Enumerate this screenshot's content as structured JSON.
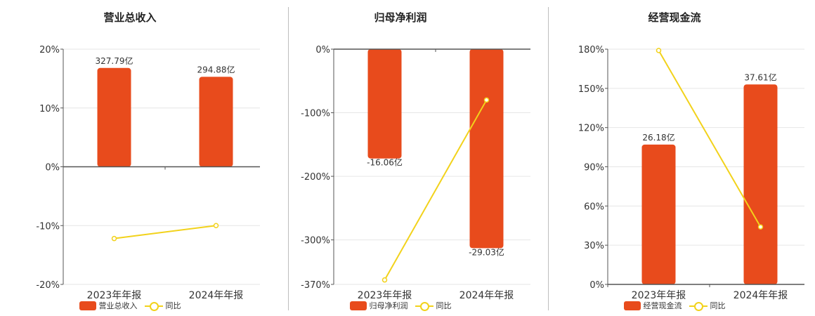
{
  "colors": {
    "bar": "#E84B1C",
    "line": "#F2D21B",
    "grid": "#e6e6e6",
    "axis": "#555555"
  },
  "legend": {
    "yoy": "同比"
  },
  "chart_data": [
    {
      "type": "bar",
      "title": "营业总收入",
      "categories": [
        "2023年年报",
        "2024年年报"
      ],
      "series": [
        {
          "name": "营业总收入",
          "type": "bar",
          "values": [
            16.8,
            15.3
          ],
          "labels": [
            "327.79亿",
            "294.88亿"
          ]
        },
        {
          "name": "同比",
          "type": "line",
          "values": [
            -12.2,
            -10.0
          ]
        }
      ],
      "ylim": [
        -20,
        20
      ],
      "yticks": [
        "20%",
        "10%",
        "0%",
        "-10%",
        "-20%"
      ],
      "ytick_values": [
        20,
        10,
        0,
        -10,
        -20
      ],
      "grid": true,
      "legend": "bottom"
    },
    {
      "type": "bar",
      "title": "归母净利润",
      "categories": [
        "2023年年报",
        "2024年年报"
      ],
      "series": [
        {
          "name": "归母净利润",
          "type": "bar",
          "values": [
            -172,
            -313
          ],
          "labels": [
            "-16.06亿",
            "-29.03亿"
          ]
        },
        {
          "name": "同比",
          "type": "line",
          "values": [
            -363,
            -80
          ]
        }
      ],
      "ylim": [
        -370,
        0
      ],
      "yticks": [
        "0%",
        "-100%",
        "-200%",
        "-300%",
        "-370%"
      ],
      "ytick_values": [
        0,
        -100,
        -200,
        -300,
        -370
      ],
      "grid": true,
      "legend": "bottom"
    },
    {
      "type": "bar",
      "title": "经营现金流",
      "categories": [
        "2023年年报",
        "2024年年报"
      ],
      "series": [
        {
          "name": "经营现金流",
          "type": "bar",
          "values": [
            107,
            153
          ],
          "labels": [
            "26.18亿",
            "37.61亿"
          ]
        },
        {
          "name": "同比",
          "type": "line",
          "values": [
            179,
            44
          ]
        }
      ],
      "ylim": [
        0,
        180
      ],
      "yticks": [
        "180%",
        "150%",
        "120%",
        "90%",
        "60%",
        "30%",
        "0%"
      ],
      "ytick_values": [
        180,
        150,
        120,
        90,
        60,
        30,
        0
      ],
      "grid": true,
      "legend": "bottom"
    }
  ]
}
